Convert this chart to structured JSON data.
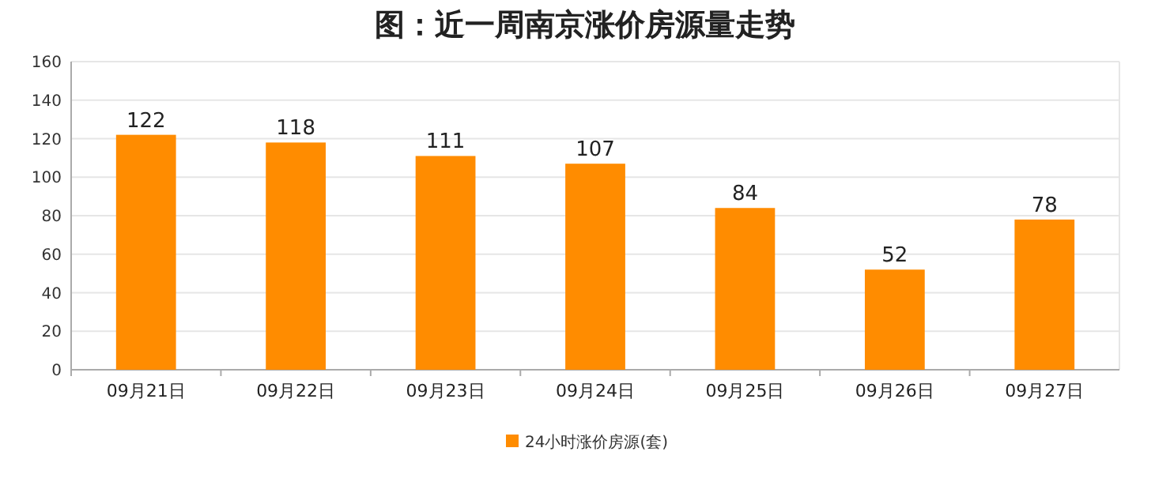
{
  "chart_data": {
    "type": "bar",
    "title": "图：近一周南京涨价房源量走势",
    "categories": [
      "09月21日",
      "09月22日",
      "09月23日",
      "09月24日",
      "09月25日",
      "09月26日",
      "09月27日"
    ],
    "series": [
      {
        "name": "24小时涨价房源(套)",
        "color": "#ff8c00",
        "values": [
          122,
          118,
          111,
          107,
          84,
          52,
          78
        ]
      }
    ],
    "ylim": [
      0,
      160
    ],
    "yticks": [
      0,
      20,
      40,
      60,
      80,
      100,
      120,
      140,
      160
    ],
    "grid": "y",
    "legend": "bottom",
    "data_labels": true
  }
}
